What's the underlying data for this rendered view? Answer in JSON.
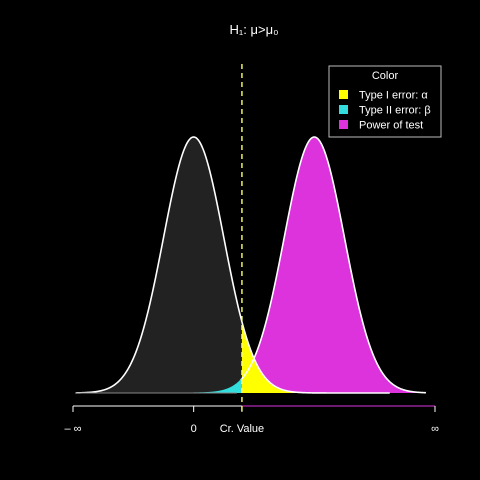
{
  "chart_data": {
    "type": "area",
    "title": "H₁: μ>μ₀",
    "x_range": [
      -4,
      8
    ],
    "critical_value": 1.6,
    "null_distribution": {
      "mean": 0,
      "sd": 1,
      "fill": "#222222"
    },
    "alt_distribution": {
      "mean": 4,
      "sd": 1,
      "fill": "#dd33dd"
    },
    "regions": [
      {
        "name": "Type I error: α",
        "color": "#ffff00"
      },
      {
        "name": "Type II error: β",
        "color": "#33dddd"
      },
      {
        "name": "Power of test",
        "color": "#dd33dd"
      }
    ],
    "legend": {
      "title": "Color",
      "placement": "top-right"
    },
    "x_ticks": [
      {
        "value": -4,
        "label": "– ∞"
      },
      {
        "value": 0,
        "label": "0"
      },
      {
        "value": 1.6,
        "label": "Cr. Value"
      },
      {
        "value": 8,
        "label": "∞"
      }
    ],
    "critical_line_color": "#ffff66",
    "curve_color": "#ffffff"
  }
}
